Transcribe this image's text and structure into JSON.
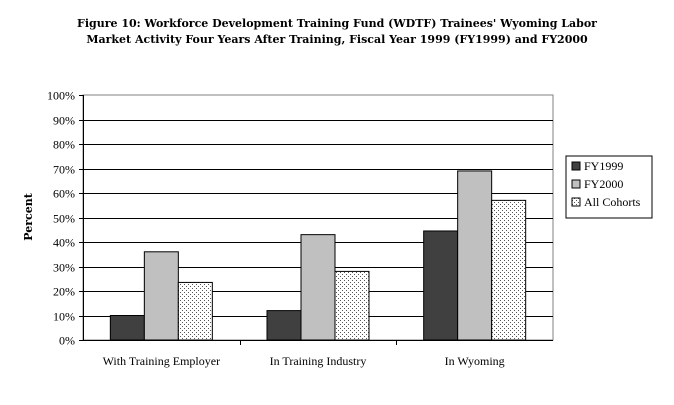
{
  "chart_data": {
    "type": "bar",
    "title": [
      "Figure 10: Workforce Development Training Fund (WDTF) Trainees' Wyoming Labor",
      "Market Activity Four Years After Training, Fiscal Year 1999 (FY1999) and FY2000"
    ],
    "ylabel": "Percent",
    "xlabel": "",
    "categories": [
      "With Training Employer",
      "In Training Industry",
      "In Wyoming"
    ],
    "series": [
      {
        "name": "FY1999",
        "values": [
          10,
          12,
          44.5
        ],
        "color": "#404040",
        "pattern": "solid"
      },
      {
        "name": "FY2000",
        "values": [
          36,
          43,
          69
        ],
        "color": "#c0c0c0",
        "pattern": "solid"
      },
      {
        "name": "All Cohorts",
        "values": [
          23.5,
          28,
          57
        ],
        "color": "#ffffff",
        "pattern": "dots"
      }
    ],
    "ylim": [
      0,
      100
    ],
    "yticks": [
      "0%",
      "10%",
      "20%",
      "30%",
      "40%",
      "50%",
      "60%",
      "70%",
      "80%",
      "90%",
      "100%"
    ],
    "grid": true,
    "legend": "right"
  }
}
